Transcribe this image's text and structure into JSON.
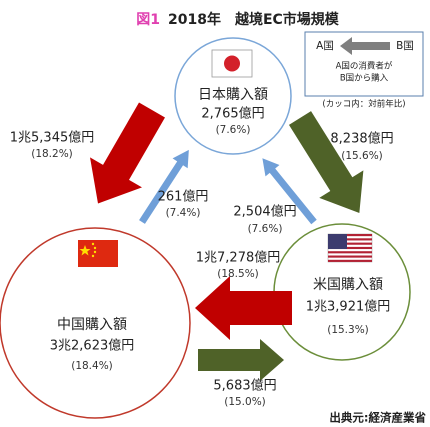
{
  "header": {
    "figure": "図1",
    "title": "2018年　越境EC市場規模"
  },
  "legend": {
    "a": "A国",
    "b": "B国",
    "lines": [
      "A国の消費者が",
      "B国から購入"
    ],
    "note": "(カッコ内：対前年比)"
  },
  "nodes": [
    {
      "label": "日本購入額",
      "amount": "2,765億円",
      "growth": "(7.6%)"
    },
    {
      "label": "中国購入額",
      "amount": "3兆2,623億円",
      "growth": "(18.4%)"
    },
    {
      "label": "米国購入額",
      "amount": "1兆3,921億円",
      "growth": "(15.3%)"
    }
  ],
  "flows": [
    {
      "amount": "1兆5,345億円",
      "growth": "(18.2%)"
    },
    {
      "amount": "261億円",
      "growth": "(7.4%)"
    },
    {
      "amount": "8,238億円",
      "growth": "(15.6%)"
    },
    {
      "amount": "2,504億円",
      "growth": "(7.6%)"
    },
    {
      "amount": "1兆7,278億円",
      "growth": "(18.5%)"
    },
    {
      "amount": "5,683億円",
      "growth": "(15.0%)"
    }
  ],
  "footer": {
    "source": "出典元:経済産業省"
  }
}
